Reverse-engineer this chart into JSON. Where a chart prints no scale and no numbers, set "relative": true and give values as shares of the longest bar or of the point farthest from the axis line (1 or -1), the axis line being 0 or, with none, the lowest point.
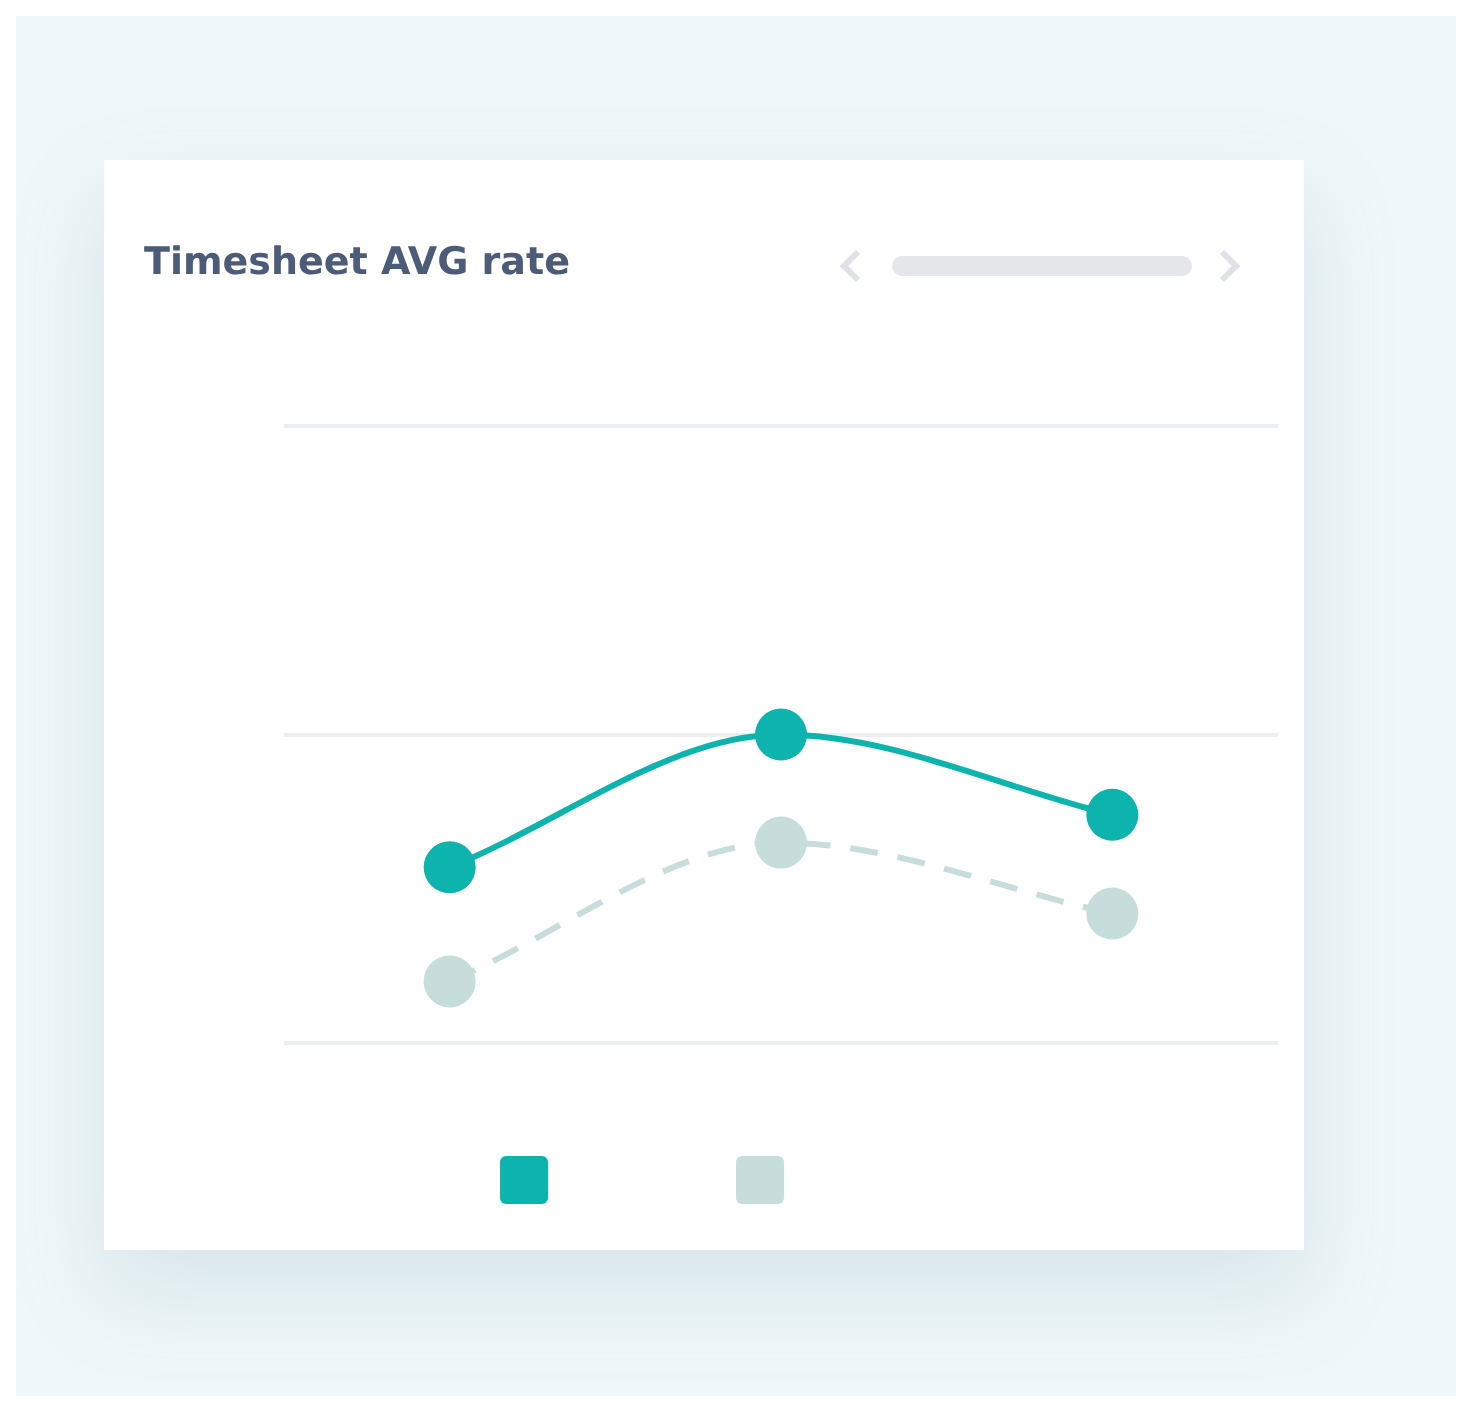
{
  "chart_data": {
    "type": "line",
    "title": "Timesheet AVG rate",
    "relative": true,
    "categories": [
      null,
      null,
      null
    ],
    "grid": "y",
    "marker": "circle",
    "series": [
      {
        "color": "#0db3ad",
        "values": [
          0.57,
          1,
          0.74
        ],
        "line_style": "solid"
      },
      {
        "color": "#c6dddc",
        "values": [
          0.2,
          0.65,
          0.42
        ],
        "line_style": "dashed"
      }
    ]
  }
}
